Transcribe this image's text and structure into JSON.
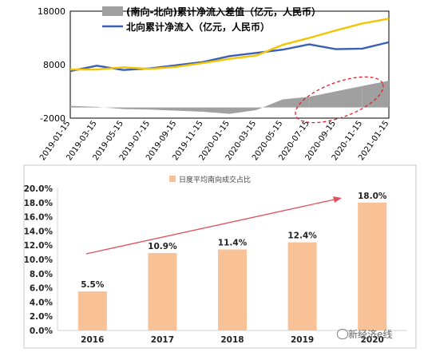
{
  "chart_data": [
    {
      "type": "line",
      "x": [
        "2019-01-15",
        "2019-03-15",
        "2019-05-15",
        "2019-07-15",
        "2019-09-15",
        "2019-11-15",
        "2020-01-15",
        "2020-03-15",
        "2020-05-15",
        "2020-07-15",
        "2020-09-15",
        "2020-11-15",
        "2021-01-15"
      ],
      "xlabel": "",
      "ylabel": "",
      "ylim": [
        -2000,
        18000
      ],
      "yticks": [
        18000,
        8000,
        -2000
      ],
      "legend_position": "top",
      "series": [
        {
          "name": "(南向-北向)累计净流入差值（亿元，人民币）",
          "kind": "area",
          "color": "#a0a0a0",
          "values": [
            300,
            100,
            -300,
            -400,
            -600,
            -800,
            -1200,
            -500,
            1500,
            2000,
            3000,
            4000,
            5000
          ]
        },
        {
          "name": "北向累计净流入（亿元，人民币）",
          "kind": "line",
          "color": "#3a5fb5",
          "values": [
            6800,
            7800,
            7000,
            7300,
            7900,
            8500,
            9600,
            10200,
            10800,
            11800,
            10900,
            11000,
            12200
          ]
        },
        {
          "name": "",
          "kind": "line",
          "color": "#f5c400",
          "values": [
            7100,
            7100,
            7500,
            7200,
            7600,
            8300,
            9100,
            9700,
            11700,
            13000,
            14400,
            15700,
            16600
          ]
        }
      ]
    },
    {
      "type": "bar",
      "categories": [
        "2016",
        "2017",
        "2018",
        "2019",
        "2020"
      ],
      "values": [
        5.5,
        10.9,
        11.4,
        12.4,
        18.0
      ],
      "value_labels": [
        "5.5%",
        "10.9%",
        "11.4%",
        "12.4%",
        "18.0%"
      ],
      "color": "#f8c196",
      "xlabel": "",
      "ylabel": "",
      "ylim": [
        0,
        20
      ],
      "yticks": [
        "0.0%",
        "2.0%",
        "4.0%",
        "6.0%",
        "8.0%",
        "10.0%",
        "12.0%",
        "14.0%",
        "16.0%",
        "18.0%",
        "20.0%"
      ],
      "legend": "日度平均南向成交占比",
      "legend_position": "top",
      "trend_arrow_color": "#e0505a"
    }
  ],
  "watermark": "新经济e线"
}
